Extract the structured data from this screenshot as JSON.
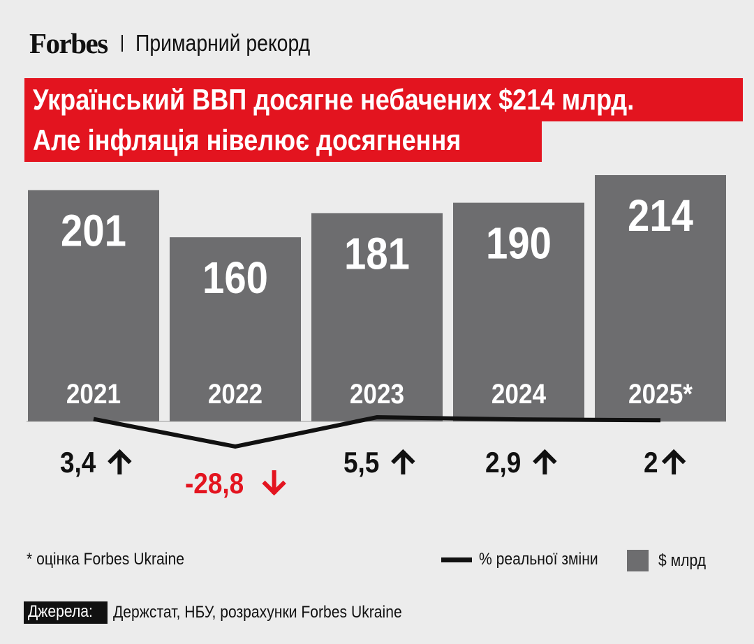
{
  "header": {
    "logo": "Forbes",
    "rubric": "Примарний рекорд"
  },
  "title": {
    "line1": "Український ВВП досягне небачених $214 млрд.",
    "line2": "Але інфляція нівелює досягнення"
  },
  "colors": {
    "accent": "#e3141f",
    "bar": "#6d6d6f",
    "line": "#111111",
    "negative": "#e3141f",
    "background": "#ececec"
  },
  "chart_data": {
    "type": "bar",
    "categories": [
      "2021",
      "2022",
      "2023",
      "2024",
      "2025*"
    ],
    "series": [
      {
        "name": "$ млрд",
        "type": "bar",
        "values": [
          201,
          160,
          181,
          190,
          214
        ]
      },
      {
        "name": "% реальної зміни",
        "type": "line",
        "values": [
          3.4,
          -28.8,
          5.5,
          2.9,
          2
        ]
      }
    ],
    "growth_labels": [
      "3,4",
      "-28,8",
      "5,5",
      "2,9",
      "2"
    ],
    "growth_direction": [
      "up",
      "down",
      "up",
      "up",
      "up"
    ]
  },
  "footnote": "* оцінка Forbes Ukraine",
  "legend": {
    "line_label": "% реальної зміни",
    "bar_label": "$ млрд"
  },
  "sources": {
    "label": "Джерела:",
    "text": "Держстат, НБУ, розрахунки Forbes Ukraine"
  }
}
